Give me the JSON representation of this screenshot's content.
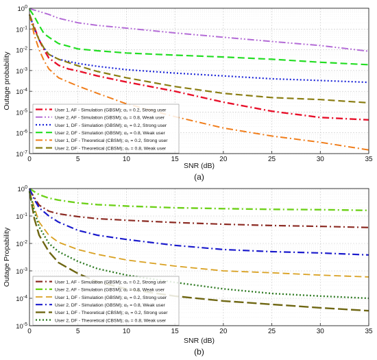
{
  "chart_data": [
    {
      "type": "line",
      "caption": "(a)",
      "xlabel": "SNR (dB)",
      "ylabel": "Outage probability",
      "xlim": [
        0,
        35
      ],
      "ylim": [
        1e-07,
        1
      ],
      "yscale": "log",
      "grid": true,
      "legend_position": "bottom-left",
      "x_ticks": [
        0,
        5,
        10,
        15,
        20,
        25,
        30,
        35
      ],
      "y_ticks": [
        {
          "value": 1,
          "label": "10^0"
        },
        {
          "value": 0.1,
          "label": "10^-1"
        },
        {
          "value": 0.01,
          "label": "10^-2"
        },
        {
          "value": 0.001,
          "label": "10^-3"
        },
        {
          "value": 0.0001,
          "label": "10^-4"
        },
        {
          "value": 1e-05,
          "label": "10^-5"
        },
        {
          "value": 1e-06,
          "label": "10^-6"
        },
        {
          "value": 1e-07,
          "label": "10^-7"
        }
      ],
      "series": [
        {
          "name": "User 1, AF - Simulation (GBSM); α₁ = 0.2, Strong user",
          "color": "#e8102a",
          "dash": "dashdot",
          "width": 2.4,
          "x": [
            0,
            0.5,
            1,
            1.5,
            2,
            3,
            4,
            5,
            7,
            10,
            15,
            20,
            25,
            30,
            35
          ],
          "y": [
            0.5,
            0.12,
            0.03,
            0.01,
            0.004,
            0.0018,
            0.0012,
            0.00095,
            0.00055,
            0.00028,
            0.0001,
            3e-05,
            1.1e-05,
            5.5e-06,
            4.2e-06
          ]
        },
        {
          "name": "User 2, AF - Simulation (GBSM); α₂ = 0.8, Weak user",
          "color": "#b36bd6",
          "dash": "dashdotdot",
          "width": 2.0,
          "x": [
            0,
            1,
            2,
            3,
            5,
            7,
            10,
            15,
            20,
            25,
            30,
            35
          ],
          "y": [
            0.95,
            0.7,
            0.5,
            0.33,
            0.2,
            0.15,
            0.11,
            0.065,
            0.04,
            0.025,
            0.016,
            0.0085
          ]
        },
        {
          "name": "User 1, DF - Simulation (GBSM); α₁ = 0.2, Strong user",
          "color": "#1a24d8",
          "dash": "dot",
          "width": 2.2,
          "x": [
            0,
            0.5,
            1,
            1.5,
            2,
            3,
            5,
            7,
            10,
            15,
            20,
            25,
            30,
            35
          ],
          "y": [
            0.5,
            0.1,
            0.03,
            0.012,
            0.006,
            0.0035,
            0.0022,
            0.0016,
            0.0011,
            0.00075,
            0.00055,
            0.0004,
            0.00033,
            0.00027
          ]
        },
        {
          "name": "User 2, DF - Simulation (GBSM); α₂ = 0.8, Weak user",
          "color": "#22dd22",
          "dash": "dash",
          "width": 2.2,
          "x": [
            0,
            0.5,
            1,
            1.5,
            2,
            3,
            5,
            7,
            10,
            15,
            20,
            25,
            30,
            35
          ],
          "y": [
            0.9,
            0.4,
            0.15,
            0.06,
            0.04,
            0.02,
            0.011,
            0.009,
            0.007,
            0.0055,
            0.0045,
            0.0035,
            0.0025,
            0.0019
          ]
        },
        {
          "name": "User 1, DF - Theoretical (CBSM); α₁ = 0.2, Strong user",
          "color": "#f07d1a",
          "dash": "dashdot",
          "width": 2.0,
          "x": [
            0,
            0.5,
            1,
            1.5,
            2,
            3,
            4,
            5,
            7,
            10,
            15,
            20,
            25,
            30,
            35
          ],
          "y": [
            0.5,
            0.05,
            0.01,
            0.003,
            0.0012,
            0.00045,
            0.00028,
            0.00018,
            8e-05,
            2.5e-05,
            6e-06,
            1.7e-06,
            7e-07,
            3.5e-07,
            1.5e-07
          ]
        },
        {
          "name": "User 2, DF - Theoretical (CBSM); α₂ = 0.8, Weak user",
          "color": "#8a7d12",
          "dash": "dash",
          "width": 2.2,
          "x": [
            0,
            0.5,
            1,
            1.5,
            2,
            3,
            5,
            7,
            10,
            15,
            20,
            25,
            30,
            35
          ],
          "y": [
            0.5,
            0.1,
            0.03,
            0.012,
            0.006,
            0.0035,
            0.0017,
            0.0009,
            0.00045,
            0.00017,
            8e-05,
            5e-05,
            4e-05,
            2.8e-05
          ]
        }
      ]
    },
    {
      "type": "line",
      "caption": "(b)",
      "xlabel": "SNR (dB)",
      "ylabel": "Outage Propability",
      "xlim": [
        0,
        35
      ],
      "ylim": [
        1e-05,
        1
      ],
      "yscale": "log",
      "grid": true,
      "legend_position": "bottom-left",
      "x_ticks": [
        0,
        5,
        10,
        15,
        20,
        25,
        30,
        35
      ],
      "y_ticks": [
        {
          "value": 1,
          "label": "10^0"
        },
        {
          "value": 0.1,
          "label": "10^-1"
        },
        {
          "value": 0.01,
          "label": "10^-2"
        },
        {
          "value": 0.001,
          "label": "10^-3"
        },
        {
          "value": 0.0001,
          "label": "10^-4"
        },
        {
          "value": 1e-05,
          "label": "10^-5"
        }
      ],
      "series": [
        {
          "name": "User 1, AF - Simulation (GBSM); α₁ = 0.2, Strong user",
          "color": "#8b2a22",
          "dash": "dashdot",
          "width": 2.2,
          "x": [
            0,
            1,
            2,
            3,
            5,
            7,
            10,
            15,
            20,
            25,
            30,
            35
          ],
          "y": [
            0.9,
            0.25,
            0.15,
            0.12,
            0.095,
            0.08,
            0.07,
            0.058,
            0.05,
            0.045,
            0.042,
            0.038
          ]
        },
        {
          "name": "User 2, AF - Simulation (GBSM); α₂ = 0.8, Weak user",
          "color": "#6ed11a",
          "dash": "dashdot",
          "width": 2.4,
          "x": [
            0,
            1,
            2,
            3,
            5,
            7,
            10,
            15,
            20,
            25,
            30,
            35
          ],
          "y": [
            1,
            0.6,
            0.45,
            0.38,
            0.3,
            0.26,
            0.23,
            0.2,
            0.185,
            0.175,
            0.17,
            0.16
          ]
        },
        {
          "name": "User 1, DF - Simulation (GBSM); α₁ = 0.2, Strong user",
          "color": "#d9a020",
          "dash": "dash",
          "width": 1.8,
          "x": [
            0,
            0.5,
            1,
            2,
            3,
            5,
            7,
            10,
            15,
            20,
            25,
            30,
            35
          ],
          "y": [
            0.8,
            0.2,
            0.06,
            0.02,
            0.011,
            0.006,
            0.004,
            0.0025,
            0.0015,
            0.001,
            0.00085,
            0.0007,
            0.0006
          ]
        },
        {
          "name": "User 2, DF - Simulation (GBSM); α₂ = 0.8, Weak user",
          "color": "#1a1acc",
          "dash": "dashdot",
          "width": 2.2,
          "x": [
            0,
            0.5,
            1,
            2,
            3,
            5,
            7,
            10,
            15,
            20,
            25,
            30,
            35
          ],
          "y": [
            1,
            0.4,
            0.2,
            0.1,
            0.06,
            0.03,
            0.02,
            0.014,
            0.0085,
            0.006,
            0.005,
            0.0045,
            0.0038
          ]
        },
        {
          "name": "User 1, DF - Theoretical (CBSM); α₁ = 0.2, Strong user",
          "color": "#6e6612",
          "dash": "longdash",
          "width": 2.4,
          "x": [
            0,
            0.5,
            1,
            2,
            3,
            5,
            7,
            10,
            15,
            20,
            25,
            30,
            35
          ],
          "y": [
            0.8,
            0.08,
            0.02,
            0.005,
            0.002,
            0.0008,
            0.0004,
            0.00022,
            0.00012,
            8e-05,
            6e-05,
            4.5e-05,
            3.5e-05
          ]
        },
        {
          "name": "User 2, DF - Theoretical (CBSM); α₂ = 0.8, Weak user",
          "color": "#2e7a22",
          "dash": "dot",
          "width": 2.4,
          "x": [
            0,
            0.5,
            1,
            2,
            3,
            5,
            7,
            10,
            15,
            20,
            25,
            30,
            35
          ],
          "y": [
            0.8,
            0.15,
            0.04,
            0.01,
            0.005,
            0.0022,
            0.0012,
            0.0007,
            0.00038,
            0.00022,
            0.00015,
            0.00012,
            0.0001
          ]
        }
      ]
    }
  ]
}
